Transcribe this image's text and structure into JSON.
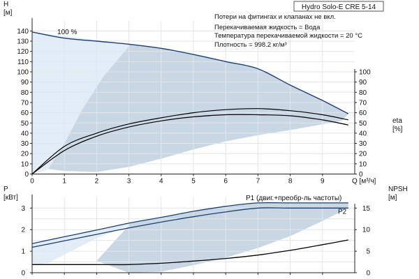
{
  "title": "Hydro Solo-E CRE 5-14",
  "notes": [
    "Потери на фитингах и клапанах не вкл.",
    "Перекачиваемая жидкость = Вода",
    "Температура перекачиваемой жидкости = 20 °C",
    "Плотность = 998.2 кг/м³"
  ],
  "colors": {
    "band": "#c9d7e4",
    "band_light": "#e3edf7",
    "dark_blue": "#1a3f72",
    "black": "#000000",
    "grid": "#e1e6ec",
    "axis": "#222222"
  },
  "chart_data": [
    {
      "type": "line",
      "panel": "top",
      "x_label": "Q [м³/ч]",
      "x_ticks": [
        0,
        1,
        2,
        3,
        4,
        5,
        6,
        7,
        8,
        9
      ],
      "xlim": [
        0,
        10
      ],
      "y_left": {
        "label_lines": [
          "H",
          "[м]"
        ],
        "ticks": [
          0,
          10,
          20,
          30,
          40,
          50,
          60,
          70,
          80,
          90,
          100,
          110,
          120,
          130,
          140
        ],
        "lim": [
          0,
          150
        ]
      },
      "y_right": {
        "label_lines": [
          "eta",
          "[%]"
        ],
        "ticks": [
          0,
          10,
          20,
          30,
          40,
          50,
          60,
          70,
          80,
          90,
          100
        ],
        "lim": [
          0,
          150
        ]
      },
      "series": [
        {
          "role": "head",
          "color": "#1a3f72",
          "x": [
            0,
            1,
            2,
            3,
            4,
            5,
            6,
            7,
            8,
            9,
            9.8
          ],
          "y": [
            139,
            133,
            130,
            127,
            123,
            117,
            110,
            103,
            87,
            72,
            59
          ]
        },
        {
          "role": "efficiency",
          "color": "#000000",
          "x": [
            0,
            1,
            2,
            3,
            4,
            5,
            6,
            7,
            8,
            9,
            9.8
          ],
          "y": [
            0,
            23,
            37,
            46,
            52,
            56,
            58,
            58,
            57,
            53,
            48
          ]
        },
        {
          "role": "efficiency-upper",
          "color": "#000000",
          "x": [
            0,
            1,
            2,
            3,
            4,
            5,
            6,
            7,
            8,
            9,
            9.8
          ],
          "y": [
            0,
            27,
            40,
            49,
            55,
            60,
            63,
            64,
            62,
            58,
            53
          ]
        }
      ],
      "annotations": [
        {
          "text": "100 %",
          "x": 1.0,
          "y": 139
        }
      ]
    },
    {
      "type": "line",
      "panel": "bottom",
      "x_ticks": [
        0,
        1,
        2,
        3,
        4,
        5,
        6,
        7,
        8,
        9
      ],
      "xlim": [
        0,
        10
      ],
      "y_left": {
        "label_lines": [
          "P",
          "[кВт]"
        ],
        "ticks": [
          0,
          1,
          2,
          3
        ],
        "lim": [
          0,
          3.5
        ]
      },
      "y_right": {
        "label_lines": [
          "NPSH",
          "[м]"
        ],
        "ticks": [
          0,
          5,
          10,
          15
        ],
        "lim": [
          0,
          17.5
        ]
      },
      "series": [
        {
          "name": "P1 (двиг.+преобр-ль частоты)",
          "axis": "left",
          "color": "#1a3f72",
          "x": [
            0,
            1,
            2,
            3,
            4,
            5,
            6,
            7,
            8,
            9,
            9.8
          ],
          "y": [
            1.35,
            1.67,
            1.98,
            2.3,
            2.57,
            2.85,
            3.08,
            3.24,
            3.24,
            3.24,
            3.24
          ]
        },
        {
          "name": "P2",
          "axis": "left",
          "color": "#1a3f72",
          "x": [
            0,
            1,
            2,
            3,
            4,
            5,
            6,
            7,
            8,
            9,
            9.8
          ],
          "y": [
            1.18,
            1.48,
            1.78,
            2.08,
            2.35,
            2.6,
            2.82,
            3.0,
            3.0,
            3.0,
            3.0
          ]
        },
        {
          "role": "npsh",
          "axis": "right",
          "color": "#000000",
          "x": [
            0,
            1,
            2,
            3,
            4,
            5,
            6,
            7,
            8,
            9,
            9.8
          ],
          "y": [
            1.9,
            1.9,
            1.9,
            1.9,
            2.2,
            2.7,
            3.3,
            4.1,
            5.2,
            6.5,
            7.6
          ]
        }
      ]
    }
  ]
}
